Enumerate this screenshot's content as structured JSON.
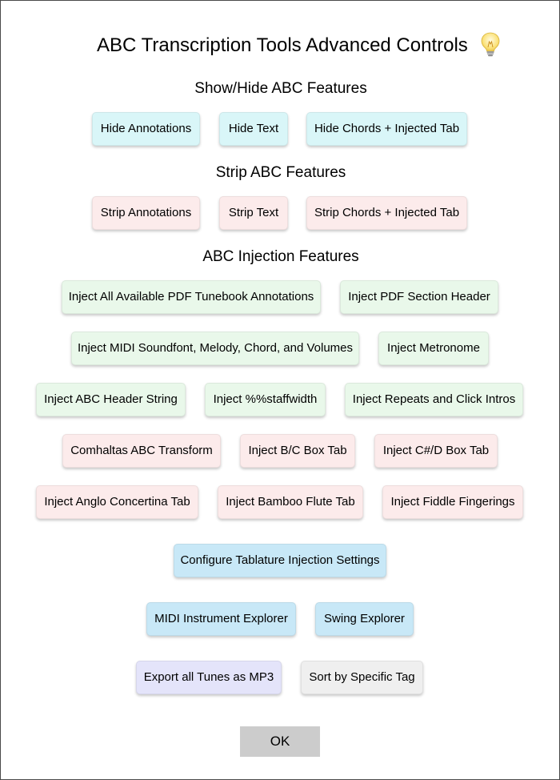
{
  "dialog": {
    "title": "ABC Transcription Tools Advanced Controls",
    "help_icon": "lightbulb-icon",
    "ok_label": "OK"
  },
  "show_hide": {
    "heading": "Show/Hide ABC Features",
    "buttons": [
      "Hide Annotations",
      "Hide Text",
      "Hide Chords + Injected Tab"
    ]
  },
  "strip": {
    "heading": "Strip ABC Features",
    "buttons": [
      "Strip Annotations",
      "Strip Text",
      "Strip Chords + Injected Tab"
    ]
  },
  "inject": {
    "heading": "ABC Injection Features",
    "row1": [
      "Inject All Available PDF Tunebook Annotations",
      "Inject PDF Section Header"
    ],
    "row2": [
      "Inject MIDI Soundfont, Melody, Chord, and Volumes",
      "Inject Metronome"
    ],
    "row3": [
      "Inject ABC Header String",
      "Inject %%staffwidth",
      "Inject Repeats and Click Intros"
    ],
    "row4": [
      "Comhaltas ABC Transform",
      "Inject B/C Box Tab",
      "Inject C#/D Box Tab"
    ],
    "row5": [
      "Inject Anglo Concertina Tab",
      "Inject Bamboo Flute Tab",
      "Inject Fiddle Fingerings"
    ]
  },
  "tools": {
    "configure_tab": "Configure Tablature Injection Settings",
    "midi_explorer": "MIDI Instrument Explorer",
    "swing_explorer": "Swing Explorer",
    "export_mp3": "Export all Tunes as MP3",
    "sort_by_tag": "Sort by Specific Tag"
  },
  "colors": {
    "show_hide_button": "#d9f6f8",
    "strip_button": "#fcebeb",
    "inject_button": "#e9f8ea",
    "transform_button": "#fcebeb",
    "tool_button": "#c8e8f7",
    "export_button": "#e4e4fa",
    "sort_button": "#efefef",
    "ok_button": "#cccccc"
  }
}
